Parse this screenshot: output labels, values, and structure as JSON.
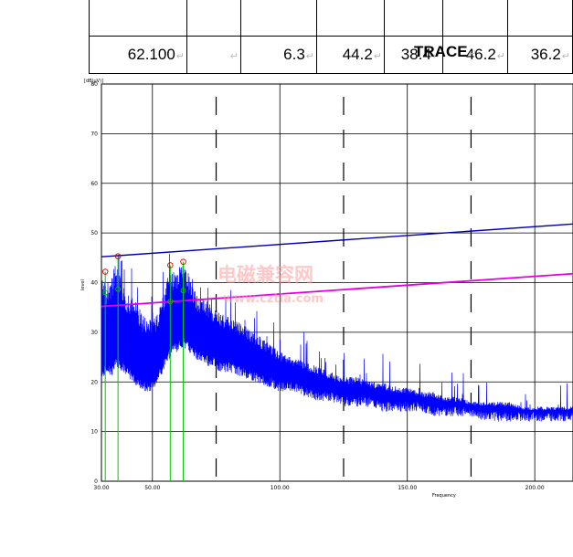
{
  "table": {
    "cells": [
      "62.100",
      "",
      "6.3",
      "44.2",
      "38.4",
      "46.2",
      "36.2"
    ],
    "paragraph_mark": "↵"
  },
  "trace_title": "TRACE",
  "watermark": {
    "line1": "电磁兼容网",
    "line2": "www.cztia.com"
  },
  "chart_data": {
    "type": "line",
    "title": "TRACE",
    "ylabel": "[dB(μV)]",
    "ylabel_side": "level",
    "xlabel": "Frequency",
    "xlim": [
      30,
      215
    ],
    "ylim": [
      0,
      80
    ],
    "x_ticks": [
      "30.00",
      "50.00",
      "100.00",
      "150.00",
      "200.00"
    ],
    "x_tick_values": [
      30,
      50,
      100,
      150,
      200
    ],
    "y_ticks": [
      "0",
      "10",
      "20",
      "30",
      "40",
      "50",
      "60",
      "70",
      "80"
    ],
    "grid": true,
    "dashed_verticals": [
      75,
      125,
      175
    ],
    "colors": {
      "trace": "#0000ff",
      "upper_limit": "#0000aa",
      "lower_limit": "#e000e0",
      "markers": "#00cc00",
      "peaks": "#cc0000"
    },
    "limit_lines": [
      {
        "x": [
          30,
          215
        ],
        "y": [
          45.2,
          51.8
        ]
      },
      {
        "x": [
          30,
          215
        ],
        "y": [
          35.2,
          41.8
        ]
      }
    ],
    "markers": [
      {
        "x": 31.5,
        "peak": 42.2,
        "avg": 38.0
      },
      {
        "x": 36.5,
        "peak": 45.3,
        "avg": 38.7
      },
      {
        "x": 57.0,
        "peak": 43.5,
        "avg": 36.2
      },
      {
        "x": 62.1,
        "peak": 44.2,
        "avg": 38.4
      }
    ],
    "envelope": [
      [
        30,
        20,
        41
      ],
      [
        32,
        22,
        40
      ],
      [
        34,
        21,
        42
      ],
      [
        36,
        23,
        44
      ],
      [
        38,
        22,
        40
      ],
      [
        40,
        21,
        38
      ],
      [
        42,
        20,
        37
      ],
      [
        44,
        19,
        36
      ],
      [
        46,
        18,
        34
      ],
      [
        48,
        18,
        33
      ],
      [
        50,
        18,
        32
      ],
      [
        52,
        20,
        34
      ],
      [
        54,
        22,
        37
      ],
      [
        56,
        24,
        41
      ],
      [
        58,
        26,
        42
      ],
      [
        60,
        26,
        43
      ],
      [
        62,
        27,
        44
      ],
      [
        64,
        26,
        42
      ],
      [
        66,
        25,
        39
      ],
      [
        68,
        24,
        37
      ],
      [
        70,
        24,
        37
      ],
      [
        72,
        23,
        36
      ],
      [
        74,
        23,
        35
      ],
      [
        76,
        22,
        34
      ],
      [
        80,
        22,
        33
      ],
      [
        85,
        21,
        32
      ],
      [
        90,
        20,
        30
      ],
      [
        95,
        19,
        28
      ],
      [
        100,
        18,
        26
      ],
      [
        105,
        18,
        25
      ],
      [
        110,
        17,
        24
      ],
      [
        115,
        16,
        23
      ],
      [
        120,
        16,
        22
      ],
      [
        125,
        15,
        21
      ],
      [
        130,
        15,
        21
      ],
      [
        135,
        15,
        20
      ],
      [
        140,
        14,
        20
      ],
      [
        145,
        14,
        19
      ],
      [
        150,
        14,
        19
      ],
      [
        155,
        14,
        18
      ],
      [
        160,
        13,
        18
      ],
      [
        165,
        13,
        17
      ],
      [
        170,
        13,
        17
      ],
      [
        175,
        13,
        16
      ],
      [
        180,
        12,
        16
      ],
      [
        185,
        12,
        16
      ],
      [
        190,
        12,
        16
      ],
      [
        195,
        12,
        15
      ],
      [
        200,
        12,
        15
      ],
      [
        205,
        12,
        15
      ],
      [
        210,
        12,
        15
      ],
      [
        215,
        12,
        15
      ]
    ]
  }
}
